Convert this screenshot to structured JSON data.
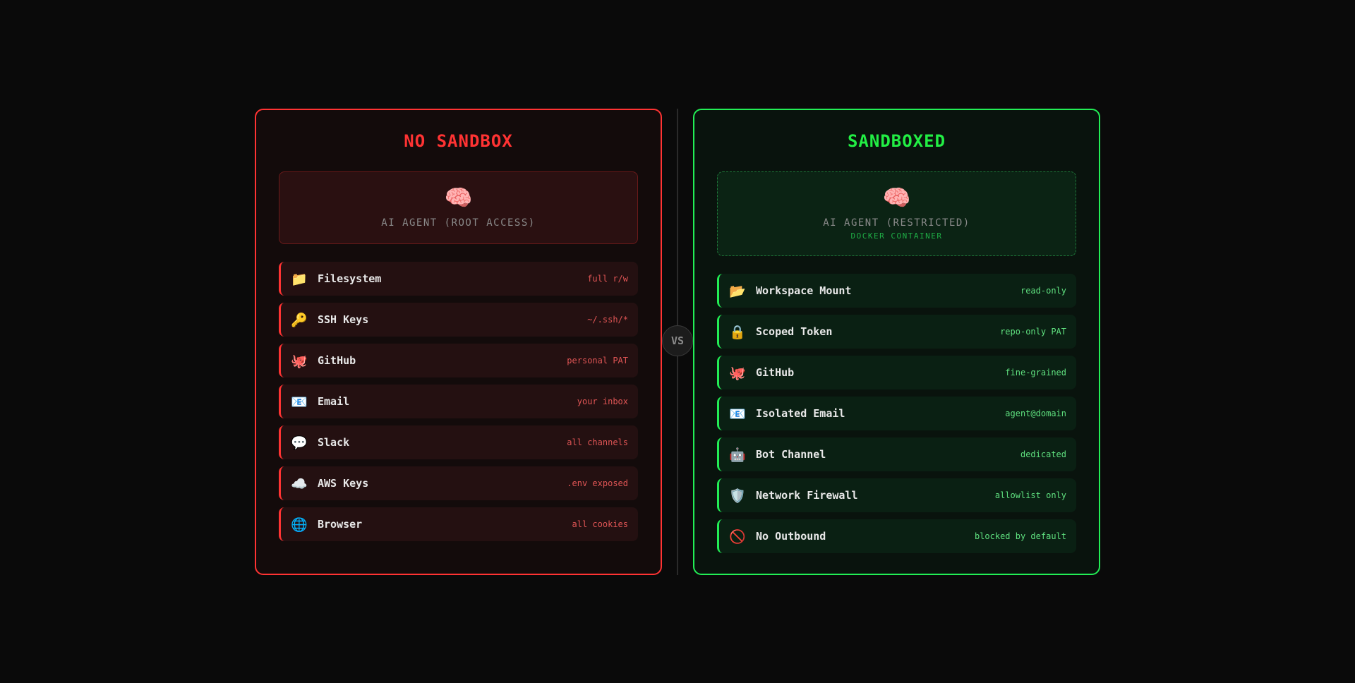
{
  "left": {
    "title": "NO SANDBOX",
    "agent": {
      "icon": "🧠",
      "label": "AI AGENT (ROOT ACCESS)"
    },
    "items": [
      {
        "icon": "📁",
        "icon_name": "folder-icon",
        "name": "Filesystem",
        "value": "full r/w"
      },
      {
        "icon": "🔑",
        "icon_name": "key-icon",
        "name": "SSH Keys",
        "value": "~/.ssh/*"
      },
      {
        "icon": "🐙",
        "icon_name": "octopus-icon",
        "name": "GitHub",
        "value": "personal PAT"
      },
      {
        "icon": "📧",
        "icon_name": "email-icon",
        "name": "Email",
        "value": "your inbox"
      },
      {
        "icon": "💬",
        "icon_name": "speech-bubble-icon",
        "name": "Slack",
        "value": "all channels"
      },
      {
        "icon": "☁️",
        "icon_name": "cloud-icon",
        "name": "AWS Keys",
        "value": ".env exposed"
      },
      {
        "icon": "🌐",
        "icon_name": "globe-icon",
        "name": "Browser",
        "value": "all cookies"
      }
    ],
    "accent": "#ff3333"
  },
  "divider": {
    "label": "VS"
  },
  "right": {
    "title": "SANDBOXED",
    "agent": {
      "icon": "🧠",
      "label": "AI AGENT (RESTRICTED)",
      "sublabel": "DOCKER CONTAINER"
    },
    "items": [
      {
        "icon": "📂",
        "icon_name": "open-folder-icon",
        "name": "Workspace Mount",
        "value": "read-only"
      },
      {
        "icon": "🔒",
        "icon_name": "lock-icon",
        "name": "Scoped Token",
        "value": "repo-only PAT"
      },
      {
        "icon": "🐙",
        "icon_name": "octopus-icon",
        "name": "GitHub",
        "value": "fine-grained"
      },
      {
        "icon": "📧",
        "icon_name": "email-icon",
        "name": "Isolated Email",
        "value": "agent@domain"
      },
      {
        "icon": "🤖",
        "icon_name": "robot-icon",
        "name": "Bot Channel",
        "value": "dedicated"
      },
      {
        "icon": "🛡️",
        "icon_name": "shield-icon",
        "name": "Network Firewall",
        "value": "allowlist only"
      },
      {
        "icon": "🚫",
        "icon_name": "prohibited-icon",
        "name": "No Outbound",
        "value": "blocked by default"
      }
    ],
    "accent": "#22ee55"
  }
}
